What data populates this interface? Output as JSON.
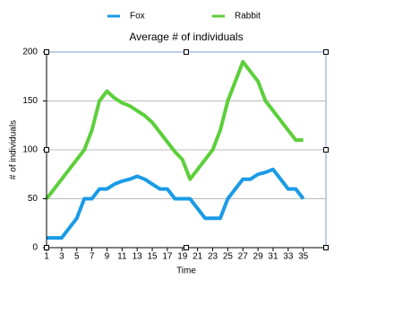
{
  "chart_data": {
    "type": "line",
    "title": "Average # of individuals",
    "x_label": "Time",
    "y_label": "# of individuals",
    "x": [
      1,
      2,
      3,
      4,
      5,
      6,
      7,
      8,
      9,
      10,
      11,
      12,
      13,
      14,
      15,
      16,
      17,
      18,
      19,
      20,
      21,
      22,
      23,
      24,
      25,
      26,
      27,
      28,
      29,
      30,
      31,
      32,
      33,
      34,
      35
    ],
    "series": [
      {
        "name": "Fox",
        "color": "#1a9be6",
        "values": [
          10,
          10,
          10,
          20,
          30,
          50,
          50,
          60,
          60,
          65,
          68,
          70,
          73,
          70,
          65,
          60,
          60,
          50,
          50,
          50,
          40,
          30,
          30,
          30,
          50,
          60,
          70,
          70,
          75,
          77,
          80,
          70,
          60,
          60,
          50
        ]
      },
      {
        "name": "Rabbit",
        "color": "#5ccf3a",
        "values": [
          50,
          60,
          70,
          80,
          90,
          100,
          120,
          150,
          160,
          153,
          148,
          145,
          140,
          135,
          128,
          118,
          108,
          98,
          90,
          70,
          80,
          90,
          100,
          120,
          150,
          170,
          190,
          180,
          170,
          150,
          140,
          130,
          120,
          110,
          110
        ]
      }
    ],
    "xlim": [
      1,
      38
    ],
    "xticks": [
      1,
      3,
      5,
      7,
      9,
      11,
      13,
      15,
      17,
      19,
      21,
      23,
      25,
      27,
      29,
      31,
      33,
      35
    ],
    "ylim": [
      0,
      200
    ],
    "yticks": [
      0,
      50,
      100,
      150,
      200
    ],
    "grid": true,
    "legend": "top"
  }
}
